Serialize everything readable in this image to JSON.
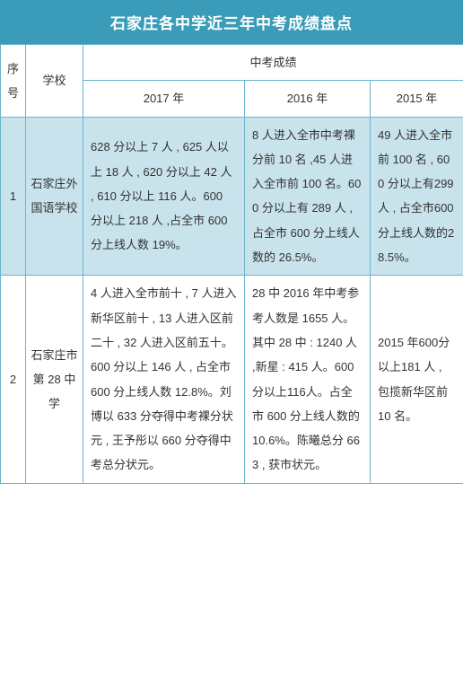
{
  "title": "石家庄各中学近三年中考成绩盘点",
  "colors": {
    "title_bg": "#3a9cb8",
    "title_fg": "#ffffff",
    "border": "#6ab5cc",
    "highlight_bg": "#c8e3ec",
    "plain_bg": "#ffffff"
  },
  "header": {
    "seq": "序号",
    "school": "学校",
    "scores": "中考成绩",
    "y2017": "2017 年",
    "y2016": "2016 年",
    "y2015": "2015 年"
  },
  "rows": [
    {
      "seq": "1",
      "school": "石家庄外国语学校",
      "y2017": "628 分以上 7 人 , 625 人以上 18 人 , 620 分以上 42 人 , 610 分以上 116 人。600 分以上 218 人 ,占全市 600 分上线人数 19%。",
      "y2016": "8 人进入全市中考裸分前 10 名 ,45 人进入全市前 100 名。600 分以上有 289 人 , 占全市 600 分上线人数的 26.5%。",
      "y2015": "49 人进入全市前 100 名 , 600 分以上有299人 , 占全市600分上线人数的28.5%。"
    },
    {
      "seq": "2",
      "school": "石家庄市第 28 中学",
      "y2017": "4 人进入全市前十 , 7 人进入新华区前十 , 13 人进入区前二十 , 32 人进入区前五十。600 分以上 146 人 , 占全市 600 分上线人数 12.8%。刘博以 633 分夺得中考裸分状元 , 王予彤以 660 分夺得中考总分状元。",
      "y2016": "28 中 2016 年中考参考人数是 1655 人。其中 28 中 : 1240 人 ,新星 : 415 人。600 分以上116人。占全市 600 分上线人数的 10.6%。陈曦总分 663 , 获市状元。",
      "y2015": "2015 年600分以上181 人 , 包揽新华区前 10 名。"
    }
  ]
}
